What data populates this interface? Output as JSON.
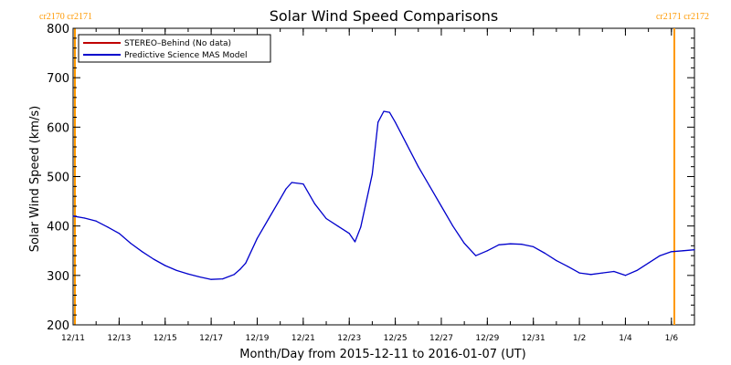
{
  "chart_data": {
    "type": "line",
    "title": "Solar Wind Speed Comparisons",
    "xlabel": "Month/Day from 2015-12-11 to 2016-01-07 (UT)",
    "ylabel": "Solar Wind Speed (km/s)",
    "ylim": [
      200,
      800
    ],
    "xlim": [
      "2015-12-11",
      "2016-01-07"
    ],
    "yticks": [
      200,
      300,
      400,
      500,
      600,
      700,
      800
    ],
    "xticks": [
      {
        "date": "2015-12-11",
        "label": "12/11"
      },
      {
        "date": "2015-12-13",
        "label": "12/13"
      },
      {
        "date": "2015-12-15",
        "label": "12/15"
      },
      {
        "date": "2015-12-17",
        "label": "12/17"
      },
      {
        "date": "2015-12-19",
        "label": "12/19"
      },
      {
        "date": "2015-12-21",
        "label": "12/21"
      },
      {
        "date": "2015-12-23",
        "label": "12/23"
      },
      {
        "date": "2015-12-25",
        "label": "12/25"
      },
      {
        "date": "2015-12-27",
        "label": "12/27"
      },
      {
        "date": "2015-12-29",
        "label": "12/29"
      },
      {
        "date": "2015-12-31",
        "label": "12/31"
      },
      {
        "date": "2016-01-02",
        "label": "1/2"
      },
      {
        "date": "2016-01-04",
        "label": "1/4"
      },
      {
        "date": "2016-01-06",
        "label": "1/6"
      }
    ],
    "legend_position": "top-left",
    "series": [
      {
        "name": "STEREO–Behind (No data)",
        "color": "#c00000",
        "x": [],
        "y": []
      },
      {
        "name": "Predictive Science MAS Model",
        "color": "#0000cc",
        "x": [
          "2015-12-11",
          "2015-12-11 12:00",
          "2015-12-12",
          "2015-12-12 12:00",
          "2015-12-13",
          "2015-12-13 12:00",
          "2015-12-14",
          "2015-12-14 12:00",
          "2015-12-15",
          "2015-12-15 12:00",
          "2015-12-16",
          "2015-12-16 12:00",
          "2015-12-17",
          "2015-12-17 12:00",
          "2015-12-18",
          "2015-12-18 06:00",
          "2015-12-18 12:00",
          "2015-12-19",
          "2015-12-19 12:00",
          "2015-12-20",
          "2015-12-20 06:00",
          "2015-12-20 12:00",
          "2015-12-21",
          "2015-12-21 12:00",
          "2015-12-22",
          "2015-12-22 12:00",
          "2015-12-23",
          "2015-12-23 06:00",
          "2015-12-23 12:00",
          "2015-12-24",
          "2015-12-24 06:00",
          "2015-12-24 12:00",
          "2015-12-24 18:00",
          "2015-12-25",
          "2015-12-25 12:00",
          "2015-12-26",
          "2015-12-26 12:00",
          "2015-12-27",
          "2015-12-27 12:00",
          "2015-12-28",
          "2015-12-28 12:00",
          "2015-12-29",
          "2015-12-29 12:00",
          "2015-12-30",
          "2015-12-30 12:00",
          "2015-12-31",
          "2015-12-31 12:00",
          "2016-01-01",
          "2016-01-01 12:00",
          "2016-01-02",
          "2016-01-02 12:00",
          "2016-01-03",
          "2016-01-03 12:00",
          "2016-01-04",
          "2016-01-04 12:00",
          "2016-01-05",
          "2016-01-05 12:00",
          "2016-01-06",
          "2016-01-06 12:00",
          "2016-01-07"
        ],
        "y": [
          420,
          416,
          410,
          398,
          385,
          365,
          348,
          333,
          320,
          310,
          303,
          297,
          292,
          293,
          302,
          312,
          325,
          375,
          415,
          455,
          475,
          488,
          485,
          445,
          415,
          400,
          385,
          368,
          398,
          505,
          610,
          632,
          630,
          610,
          565,
          520,
          480,
          440,
          400,
          365,
          340,
          350,
          362,
          364,
          363,
          358,
          345,
          330,
          318,
          305,
          302,
          305,
          308,
          300,
          310,
          325,
          340,
          348,
          350,
          352
        ]
      }
    ],
    "vertical_markers": [
      {
        "date": "2015-12-11",
        "color": "#ff9900"
      },
      {
        "date": "2016-01-07",
        "color": "#ff9900"
      }
    ],
    "corner_labels": {
      "left": "cr2170 cr2171",
      "right": "cr2171 cr2172"
    },
    "grid": false
  },
  "colors": {
    "marker": "#ff9900",
    "stereo_line": "#c00000",
    "model_line": "#0000cc"
  }
}
